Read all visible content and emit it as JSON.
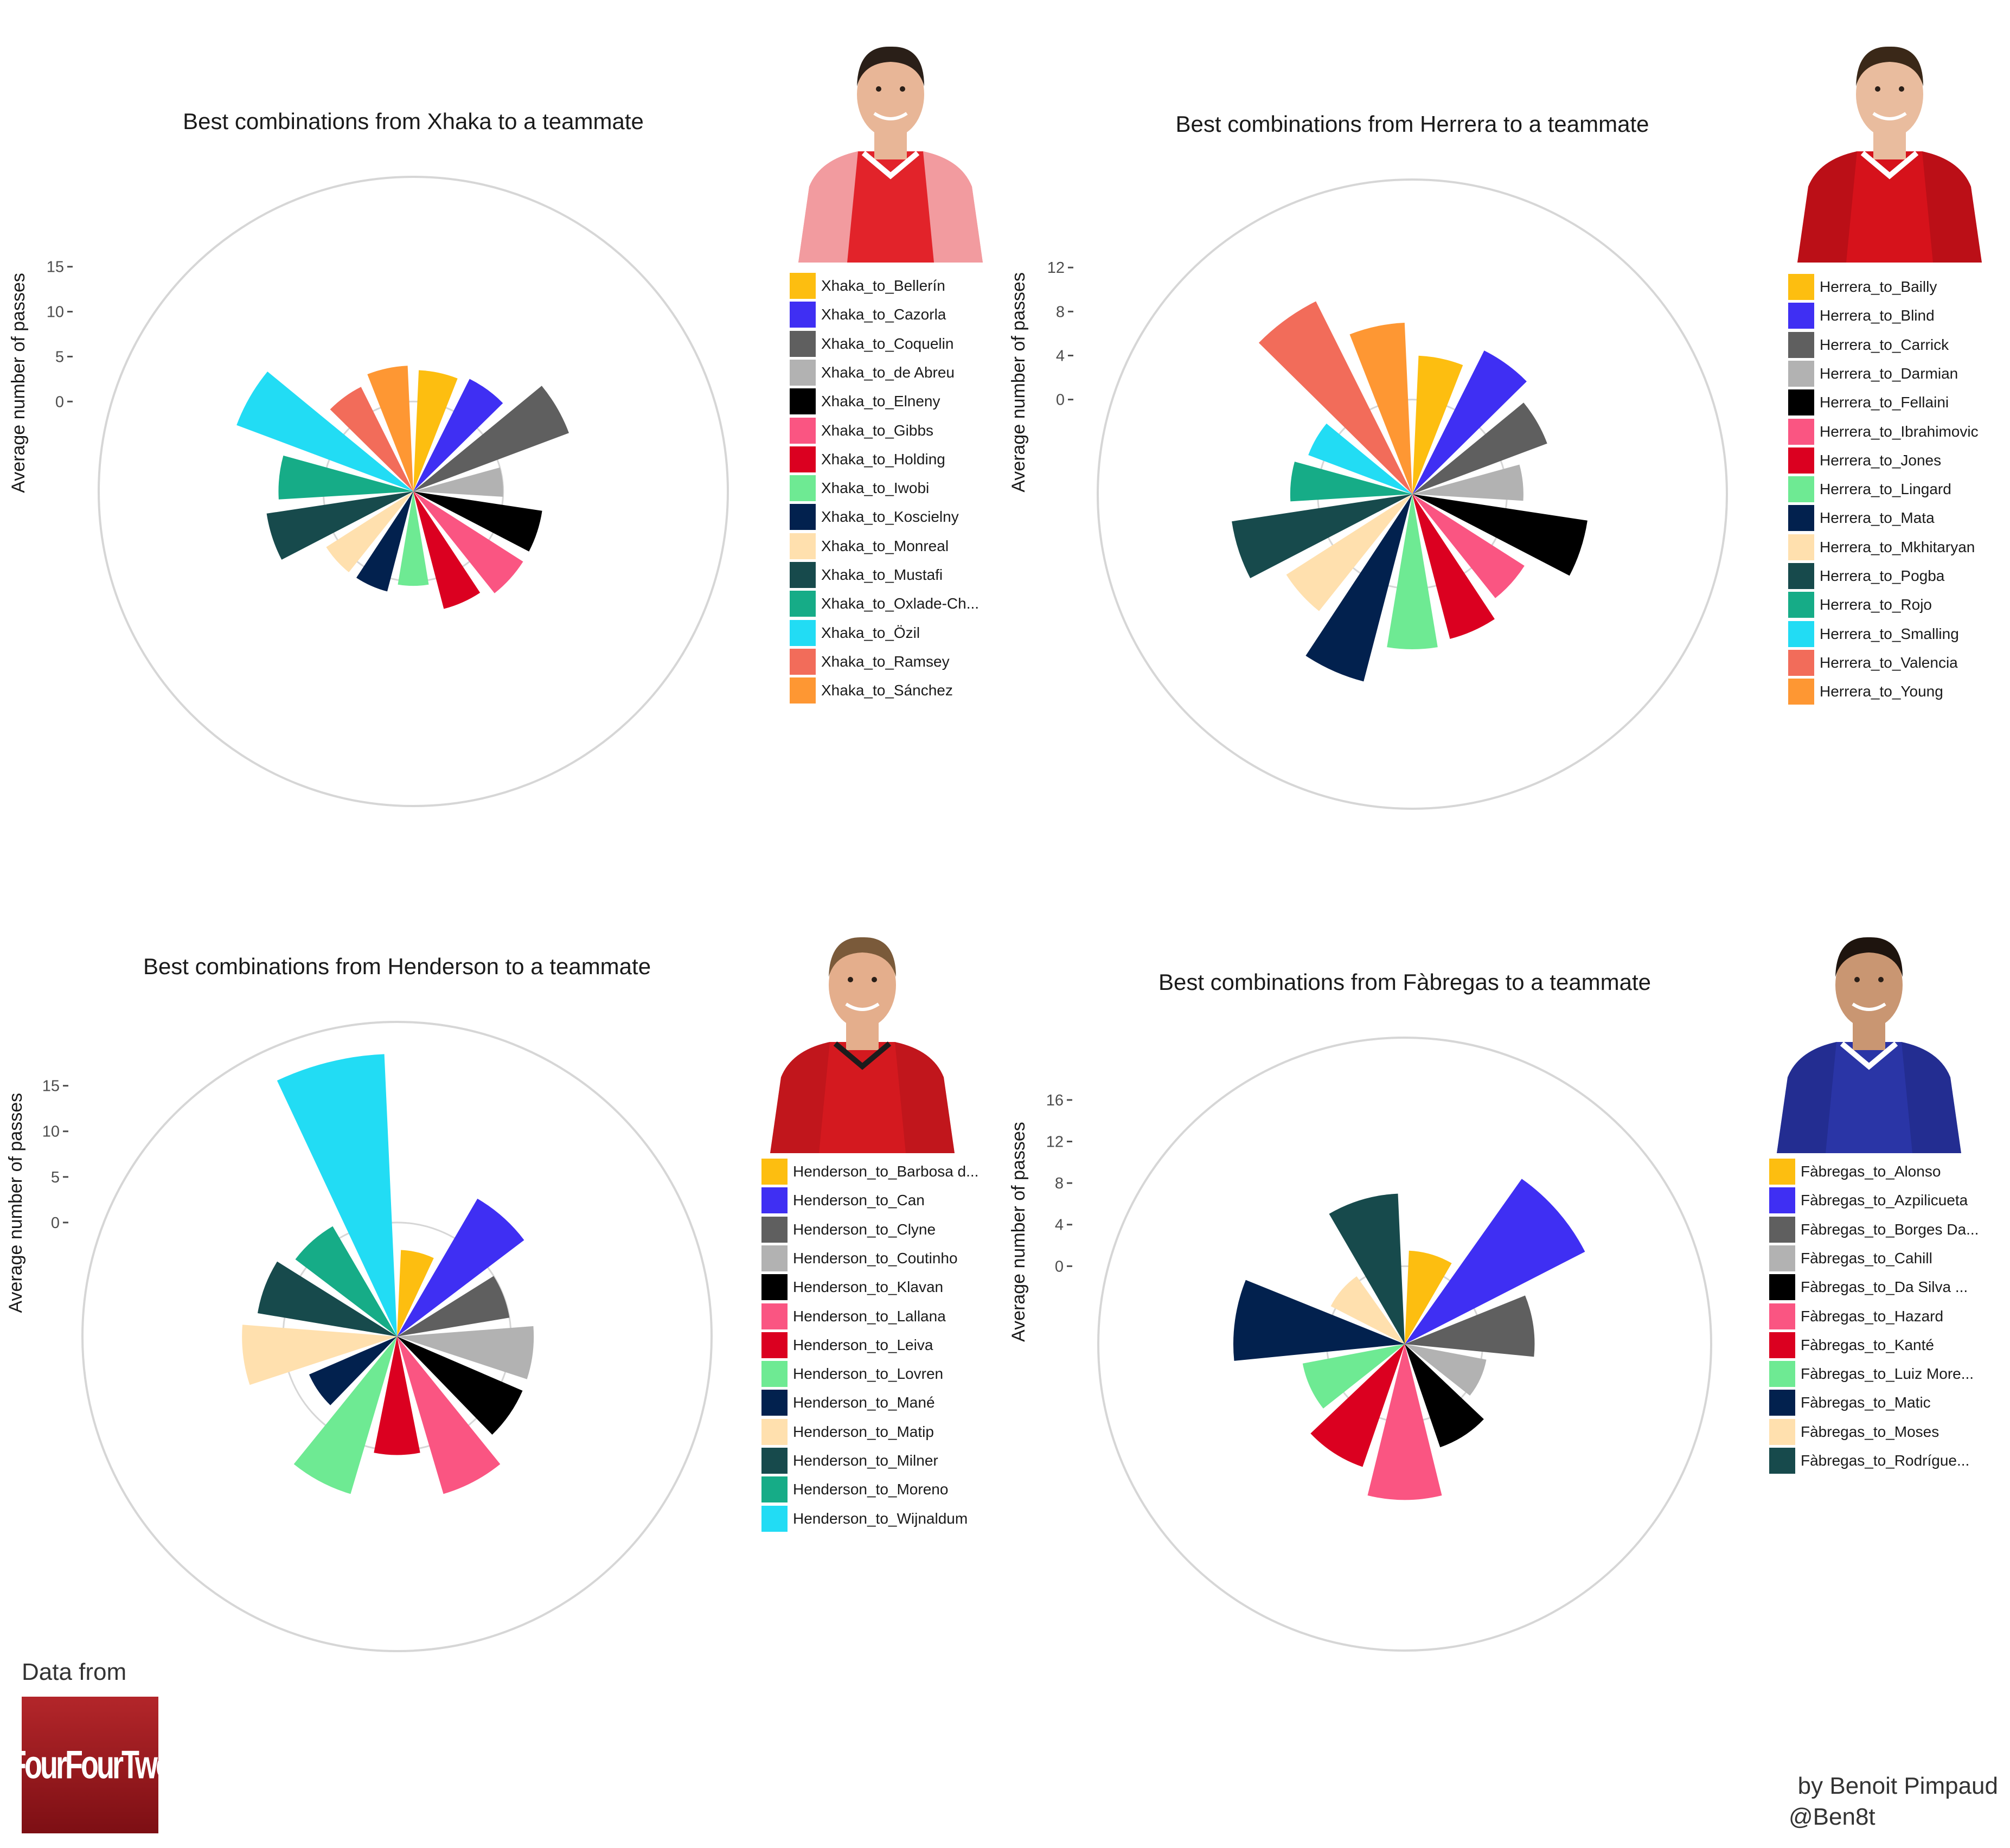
{
  "footer": {
    "data_from": "Data from",
    "logo_text": "FourFourTwo",
    "author": "by Benoit Pimpaud",
    "handle": "@Ben8t"
  },
  "chart_data": [
    {
      "type": "polar-bar",
      "title": "Best combinations from Xhaka to a teammate",
      "ylabel": "Average number of passes",
      "yticks": [
        0,
        5,
        10,
        15
      ],
      "ylim": [
        -10,
        25
      ],
      "kit": "arsenal",
      "categories": [
        "Xhaka_to_Bellerín",
        "Xhaka_to_Cazorla",
        "Xhaka_to_Coquelin",
        "Xhaka_to_de Abreu",
        "Xhaka_to_Elneny",
        "Xhaka_to_Gibbs",
        "Xhaka_to_Holding",
        "Xhaka_to_Iwobi",
        "Xhaka_to_Koscielny",
        "Xhaka_to_Monreal",
        "Xhaka_to_Mustafi",
        "Xhaka_to_Oxlade-Ch...",
        "Xhaka_to_Özil",
        "Xhaka_to_Ramsey",
        "Xhaka_to_Sánchez"
      ],
      "values": [
        3.5,
        4,
        8.5,
        0,
        4.5,
        4.5,
        3.5,
        0.5,
        1.5,
        1.5,
        6.5,
        5,
        11,
        3,
        4
      ],
      "colors": [
        "#FDBE10",
        "#3F2FF3",
        "#5F5F5F",
        "#B2B2B2",
        "#000000",
        "#FA5582",
        "#DB0020",
        "#6EEA93",
        "#02214E",
        "#FFE0AE",
        "#174A4C",
        "#16AC87",
        "#22DCF4",
        "#F26C5A",
        "#FE9733"
      ]
    },
    {
      "type": "polar-bar",
      "title": "Best combinations from Herrera to a teammate",
      "ylabel": "Average number of passes",
      "yticks": [
        0,
        4,
        8,
        12
      ],
      "ylim": [
        -8.6,
        20
      ],
      "kit": "manutd",
      "categories": [
        "Herrera_to_Bailly",
        "Herrera_to_Blind",
        "Herrera_to_Carrick",
        "Herrera_to_Darmian",
        "Herrera_to_Fellaini",
        "Herrera_to_Ibrahimovic",
        "Herrera_to_Jones",
        "Herrera_to_Lingard",
        "Herrera_to_Mata",
        "Herrera_to_Mkhitaryan",
        "Herrera_to_Pogba",
        "Herrera_to_Rojo",
        "Herrera_to_Smalling",
        "Herrera_to_Valencia",
        "Herrera_to_Young"
      ],
      "values": [
        4,
        6,
        4.5,
        1.5,
        7.5,
        3.5,
        5,
        5.5,
        9,
        5,
        8,
        2.5,
        1.5,
        11,
        7
      ],
      "colors": [
        "#FDBE10",
        "#3F2FF3",
        "#5F5F5F",
        "#B2B2B2",
        "#000000",
        "#FA5582",
        "#DB0020",
        "#6EEA93",
        "#02214E",
        "#FFE0AE",
        "#174A4C",
        "#16AC87",
        "#22DCF4",
        "#F26C5A",
        "#FE9733"
      ]
    },
    {
      "type": "polar-bar",
      "title": "Best combinations from Henderson to a teammate",
      "ylabel": "Average number of passes",
      "yticks": [
        0,
        5,
        10,
        15
      ],
      "ylim": [
        -12.5,
        22
      ],
      "kit": "liverpool",
      "categories": [
        "Henderson_to_Barbosa d...",
        "Henderson_to_Can",
        "Henderson_to_Clyne",
        "Henderson_to_Coutinho",
        "Henderson_to_Klavan",
        "Henderson_to_Lallana",
        "Henderson_to_Leiva",
        "Henderson_to_Lovren",
        "Henderson_to_Mané",
        "Henderson_to_Matip",
        "Henderson_to_Milner",
        "Henderson_to_Moreno",
        "Henderson_to_Wijnaldum"
      ],
      "values": [
        -3,
        5,
        0,
        2.5,
        2.5,
        5.5,
        0.5,
        5.5,
        -2,
        4.5,
        3,
        1.5,
        18.5
      ],
      "colors": [
        "#FDBE10",
        "#3F2FF3",
        "#5F5F5F",
        "#B2B2B2",
        "#000000",
        "#FA5582",
        "#DB0020",
        "#6EEA93",
        "#02214E",
        "#FFE0AE",
        "#174A4C",
        "#16AC87",
        "#22DCF4"
      ]
    },
    {
      "type": "polar-bar",
      "title": "Best combinations from Fàbregas to a teammate",
      "ylabel": "Average number of passes",
      "yticks": [
        0,
        4,
        8,
        12,
        16
      ],
      "ylim": [
        -7.5,
        22
      ],
      "kit": "chelsea",
      "categories": [
        "Fàbregas_to_Alonso",
        "Fàbregas_to_Azpilicueta",
        "Fàbregas_to_Borges Da...",
        "Fàbregas_to_Cahill",
        "Fàbregas_to_Da Silva ...",
        "Fàbregas_to_Hazard",
        "Fàbregas_to_Kanté",
        "Fàbregas_to_Luiz More...",
        "Fàbregas_to_Matic",
        "Fàbregas_to_Moses",
        "Fàbregas_to_Rodrígue..."
      ],
      "values": [
        1.5,
        12,
        5,
        0.5,
        3,
        7.5,
        5,
        2.5,
        9,
        0.5,
        7
      ],
      "colors": [
        "#FDBE10",
        "#3F2FF3",
        "#5F5F5F",
        "#B2B2B2",
        "#000000",
        "#FA5582",
        "#DB0020",
        "#6EEA93",
        "#02214E",
        "#FFE0AE",
        "#174A4C"
      ]
    }
  ]
}
